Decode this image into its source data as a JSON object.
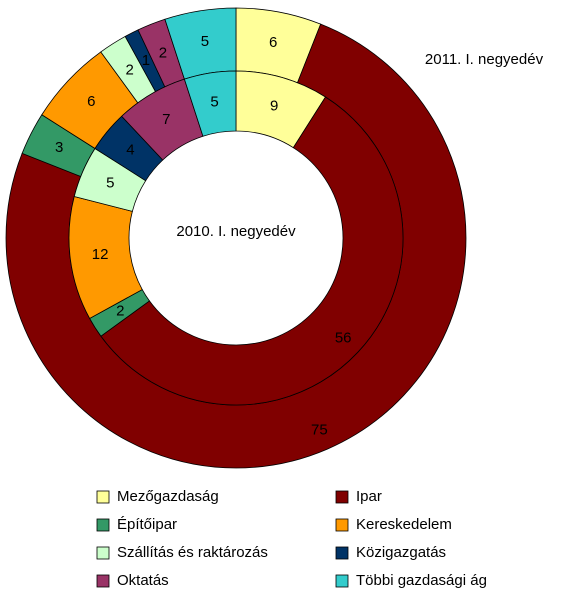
{
  "chart_data": {
    "type": "doughnut",
    "categories": [
      "Mezőgazdaság",
      "Ipar",
      "Építőipar",
      "Kereskedelem",
      "Szállítás és raktározás",
      "Közigazgatás",
      "Oktatás",
      "Többi gazdasági ág"
    ],
    "colors": [
      "#ffff99",
      "#800000",
      "#339966",
      "#ff9900",
      "#ccffcc",
      "#003366",
      "#993366",
      "#33cccc"
    ],
    "series": [
      {
        "name": "2011. I. negyedév",
        "values": [
          6,
          75,
          3,
          6,
          2,
          1,
          2,
          5
        ]
      },
      {
        "name": "2010. I. negyedév",
        "values": [
          9,
          56,
          2,
          12,
          5,
          4,
          7,
          5
        ]
      }
    ]
  }
}
